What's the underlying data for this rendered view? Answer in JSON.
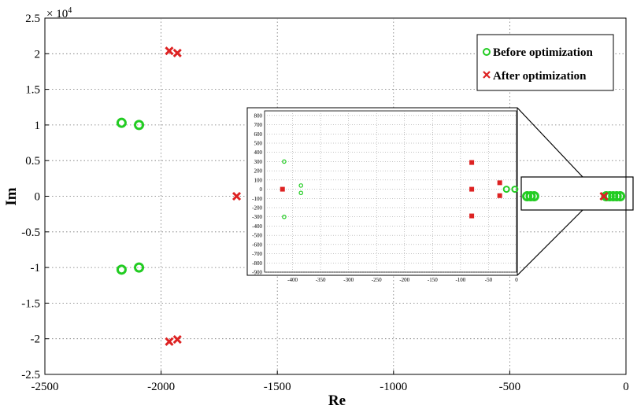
{
  "chart_data": [
    {
      "type": "scatter",
      "xlabel": "Re",
      "ylabel": "Im",
      "y_multiplier": "× 10^4",
      "y_multiplier_base": "× 10",
      "y_multiplier_exp": "4",
      "xlim": [
        -2500,
        0
      ],
      "ylim": [
        -2.5,
        2.5
      ],
      "xticks": [
        -2500,
        -2000,
        -1500,
        -1000,
        -500,
        0
      ],
      "yticks": [
        2.5,
        2,
        1.5,
        1,
        0.5,
        0,
        -0.5,
        -1,
        -1.5,
        -2,
        -2.5
      ],
      "xtick_labels": [
        "-2500",
        "-2000",
        "-1500",
        "-1000",
        "-500",
        "0"
      ],
      "ytick_labels": [
        "2.5",
        "2",
        "1.5",
        "1",
        "0.5",
        "0",
        "-0.5",
        "-1",
        "-1.5",
        "-2",
        "-2.5"
      ],
      "grid": true,
      "legend_position": "top-right",
      "series": [
        {
          "name": "Before optimization",
          "marker": "circle",
          "color": "#22cc22",
          "points": [
            [
              -2170,
              1.03
            ],
            [
              -2095,
              1.0
            ],
            [
              -2170,
              -1.03
            ],
            [
              -2095,
              -1.0
            ],
            [
              -425,
              0
            ],
            [
              -410,
              0
            ],
            [
              -395,
              0
            ],
            [
              -85,
              0
            ],
            [
              -70,
              0
            ],
            [
              -55,
              0
            ],
            [
              -40,
              0
            ],
            [
              -25,
              0
            ]
          ]
        },
        {
          "name": "After optimization",
          "marker": "x",
          "color": "#dd2222",
          "points": [
            [
              -1965,
              2.04
            ],
            [
              -1930,
              2.01
            ],
            [
              -1965,
              -2.04
            ],
            [
              -1930,
              -2.01
            ],
            [
              -1675,
              0
            ],
            [
              -95,
              0
            ]
          ]
        }
      ]
    },
    {
      "type": "scatter",
      "inset": true,
      "xlim": [
        -450,
        0
      ],
      "ylim": [
        -900,
        850
      ],
      "xticks": [
        -400,
        -350,
        -300,
        -250,
        -200,
        -150,
        -100,
        -50,
        0
      ],
      "yticks": [
        800,
        700,
        600,
        500,
        400,
        300,
        200,
        100,
        0,
        -100,
        -200,
        -300,
        -400,
        -500,
        -600,
        -700,
        -800,
        -900
      ],
      "xtick_labels": [
        "-400",
        "-350",
        "-300",
        "-250",
        "-200",
        "-150",
        "-100",
        "-50",
        "0"
      ],
      "ytick_labels": [
        "800",
        "700",
        "600",
        "500",
        "400",
        "300",
        "200",
        "100",
        "0",
        "-100",
        "-200",
        "-300",
        "-400",
        "-500",
        "-600",
        "-700",
        "-800",
        "-900"
      ],
      "grid": true,
      "series": [
        {
          "name": "Before optimization",
          "marker": "circle",
          "color": "#22cc22",
          "points": [
            [
              -415,
              300
            ],
            [
              -415,
              -300
            ],
            [
              -385,
              40
            ],
            [
              -385,
              -40
            ],
            [
              -18,
              0
            ],
            [
              -3,
              0
            ]
          ]
        },
        {
          "name": "After optimization",
          "marker": "square",
          "color": "#dd2222",
          "points": [
            [
              -418,
              0
            ],
            [
              -80,
              290
            ],
            [
              -80,
              0
            ],
            [
              -80,
              -290
            ],
            [
              -30,
              70
            ],
            [
              -30,
              -70
            ]
          ]
        }
      ]
    }
  ]
}
